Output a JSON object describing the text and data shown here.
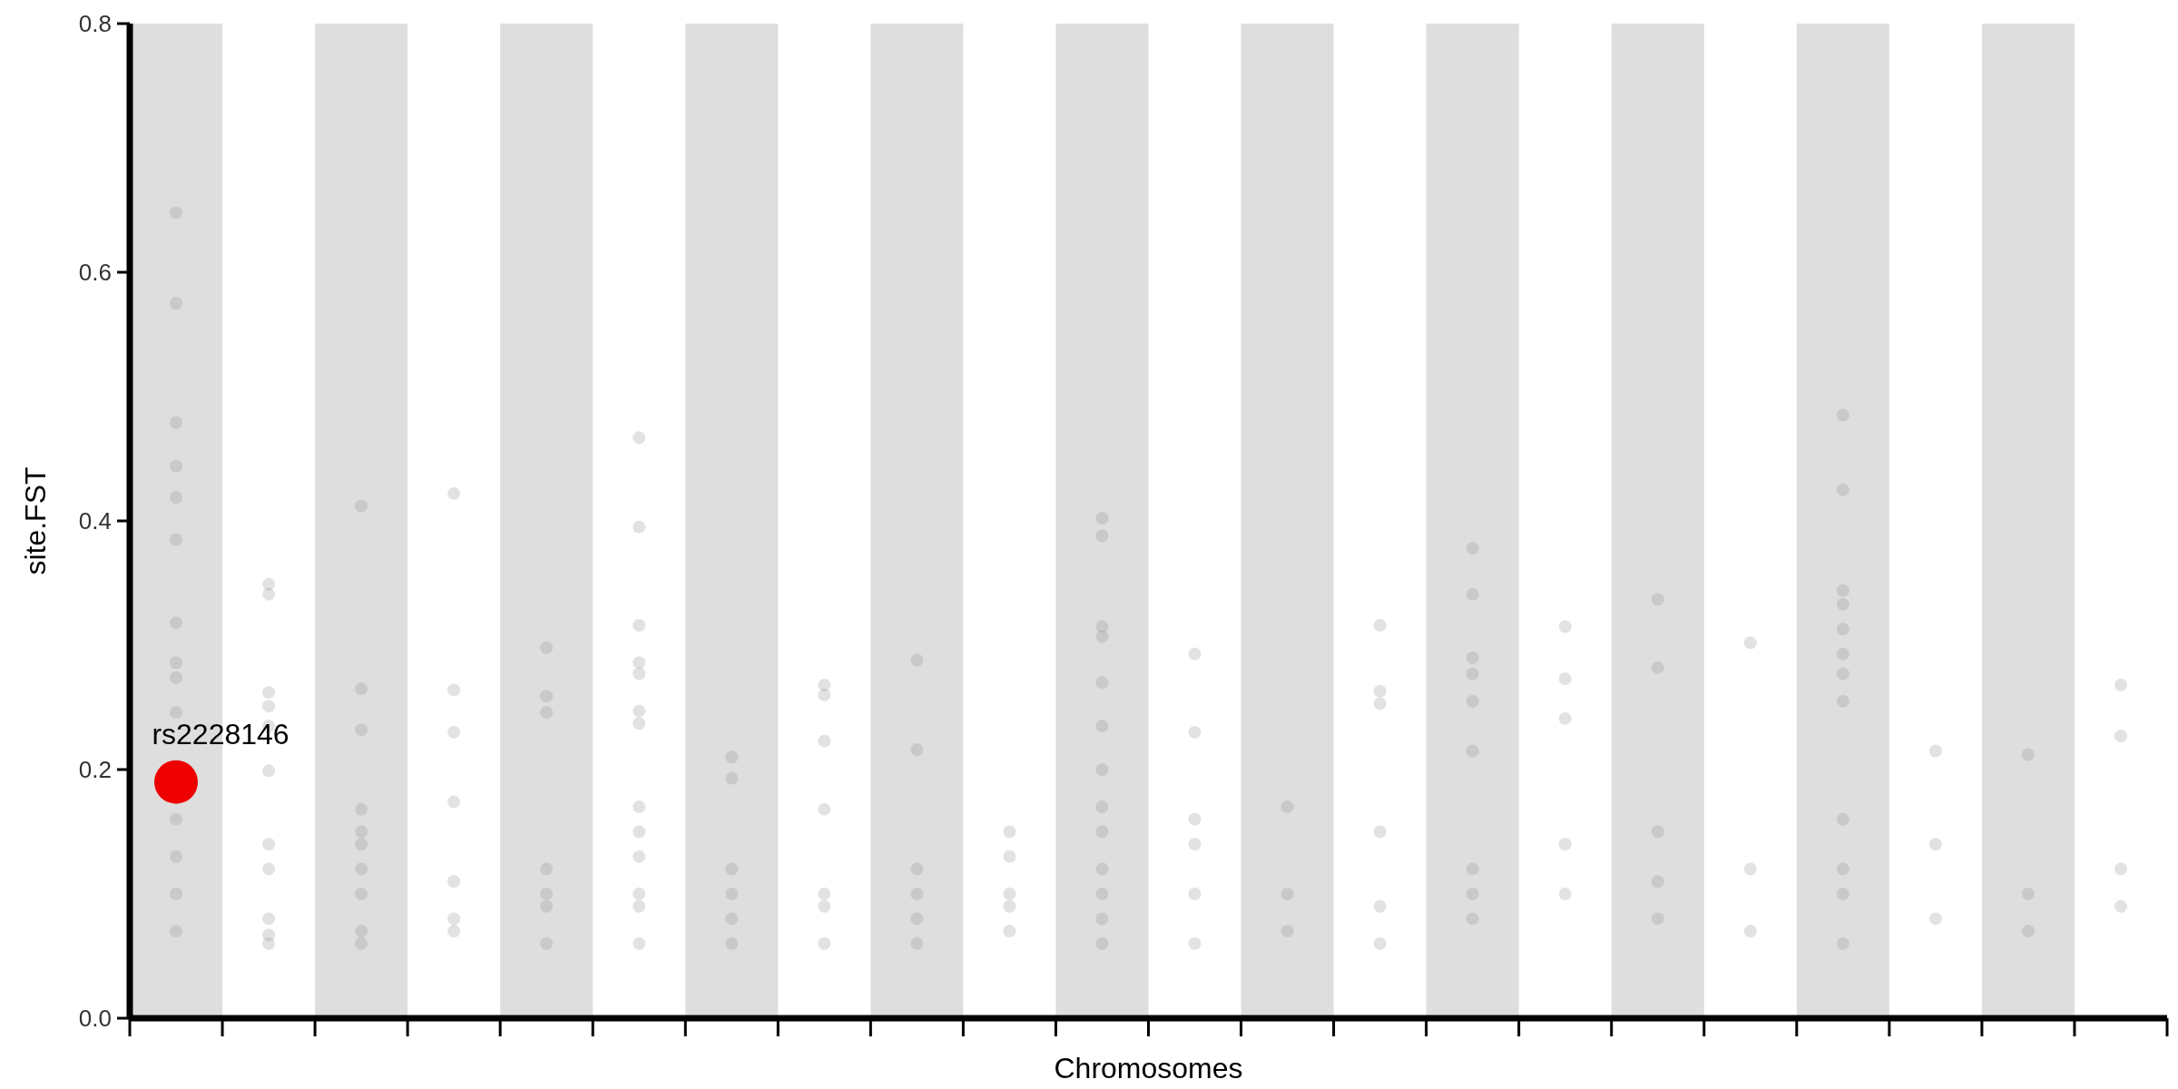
{
  "chart_data": {
    "type": "scatter",
    "xlabel": "Chromosomes",
    "ylabel": "site.FST",
    "marker": "circle",
    "grid": false,
    "categories": [
      null,
      null,
      null,
      null,
      null,
      null,
      null,
      null,
      null,
      null,
      null,
      null,
      null,
      null,
      null,
      null,
      null,
      null,
      null,
      null,
      null,
      null
    ],
    "ylim": [
      0,
      0.8
    ],
    "yticks": [
      {
        "value": 0,
        "label": "0.0"
      },
      0.2,
      0.4,
      0.6,
      0.8
    ],
    "series": [
      {
        "color": "#8c8c8c",
        "values": [
          0.648,
          0.349,
          0.412,
          0.422,
          0.298,
          0.467,
          0.21,
          0.268,
          0.288,
          0.15,
          0.402,
          0.293,
          0.17,
          0.316,
          0.378,
          0.315,
          0.337,
          0.302,
          0.485,
          0.215,
          0.212,
          0.268
        ]
      },
      {
        "color": "#8c8c8c",
        "values": [
          0.575,
          0.341,
          0.265,
          0.264,
          0.259,
          0.395,
          0.193,
          0.26,
          0.216,
          0.13,
          0.388,
          0.23,
          0.1,
          0.263,
          0.341,
          0.273,
          0.282,
          0.12,
          0.425,
          0.14,
          0.1,
          0.227
        ]
      },
      {
        "color": "#8c8c8c",
        "values": [
          0.479,
          0.262,
          null,
          0.23,
          0.246,
          0.316,
          0.12,
          0.223,
          0.12,
          0.1,
          0.315,
          0.16,
          0.07,
          0.253,
          0.29,
          0.241,
          0.15,
          0.07,
          0.344,
          0.08,
          0.07,
          0.12
        ]
      },
      {
        "color": "#8c8c8c",
        "values": [
          0.444,
          0.251,
          0.232,
          0.174,
          0.12,
          0.286,
          0.1,
          0.168,
          0.1,
          0.09,
          0.307,
          0.14,
          null,
          0.15,
          0.277,
          0.14,
          0.11,
          null,
          0.333,
          null,
          null,
          0.09
        ]
      },
      {
        "color": "#8c8c8c",
        "values": [
          0.419,
          0.235,
          0.168,
          0.11,
          0.1,
          0.277,
          0.08,
          0.1,
          0.08,
          0.07,
          0.27,
          0.1,
          null,
          0.09,
          0.255,
          0.1,
          0.08,
          null,
          0.313,
          null,
          null,
          null
        ]
      },
      {
        "color": "#8c8c8c",
        "values": [
          0.385,
          0.199,
          0.15,
          0.08,
          0.09,
          0.247,
          0.06,
          0.09,
          0.06,
          null,
          0.235,
          0.06,
          null,
          0.06,
          0.215,
          null,
          null,
          null,
          0.293,
          null,
          null,
          null
        ]
      },
      {
        "color": "#8c8c8c",
        "values": [
          0.318,
          0.14,
          0.14,
          0.07,
          0.06,
          null,
          null,
          0.06,
          null,
          null,
          0.2,
          null,
          null,
          null,
          0.12,
          null,
          null,
          null,
          0.277,
          null,
          null,
          null
        ]
      },
      {
        "color": "#8c8c8c",
        "values": [
          0.286,
          0.12,
          0.12,
          null,
          null,
          0.237,
          null,
          null,
          null,
          null,
          0.17,
          null,
          null,
          null,
          0.1,
          null,
          null,
          null,
          0.255,
          null,
          null,
          null
        ]
      },
      {
        "color": "#8c8c8c",
        "values": [
          0.274,
          0.08,
          0.1,
          null,
          null,
          0.17,
          null,
          null,
          null,
          null,
          0.15,
          null,
          null,
          null,
          0.08,
          null,
          null,
          null,
          0.16,
          null,
          null,
          null
        ]
      },
      {
        "color": "#8c8c8c",
        "values": [
          0.246,
          0.067,
          0.07,
          null,
          null,
          0.15,
          null,
          null,
          null,
          null,
          0.12,
          null,
          null,
          null,
          null,
          null,
          null,
          null,
          0.12,
          null,
          null,
          null
        ]
      },
      {
        "color": "#8c8c8c",
        "values": [
          0.16,
          0.06,
          0.06,
          null,
          null,
          0.13,
          null,
          null,
          null,
          null,
          0.1,
          null,
          null,
          null,
          null,
          null,
          null,
          null,
          0.1,
          null,
          null,
          null
        ]
      },
      {
        "color": "#8c8c8c",
        "values": [
          0.13,
          null,
          null,
          null,
          null,
          0.1,
          null,
          null,
          null,
          null,
          0.08,
          null,
          null,
          null,
          null,
          null,
          null,
          null,
          0.06,
          null,
          null,
          null
        ]
      },
      {
        "color": "#8c8c8c",
        "values": [
          0.1,
          null,
          null,
          null,
          null,
          0.09,
          null,
          null,
          null,
          null,
          0.06,
          null,
          null,
          null,
          null,
          null,
          null,
          null,
          null,
          null,
          null,
          null
        ]
      },
      {
        "color": "#8c8c8c",
        "values": [
          0.07,
          null,
          null,
          null,
          null,
          0.06,
          null,
          null,
          null,
          null,
          null,
          null,
          null,
          null,
          null,
          null,
          null,
          null,
          null,
          null,
          null,
          null
        ]
      },
      {
        "color": "#ee0000",
        "values": [
          0.19,
          null,
          null,
          null,
          null,
          null,
          null,
          null,
          null,
          null,
          null,
          null,
          null,
          null,
          null,
          null,
          null,
          null,
          null,
          null,
          null,
          null
        ]
      }
    ],
    "annotations": [
      "rs2228146"
    ]
  }
}
